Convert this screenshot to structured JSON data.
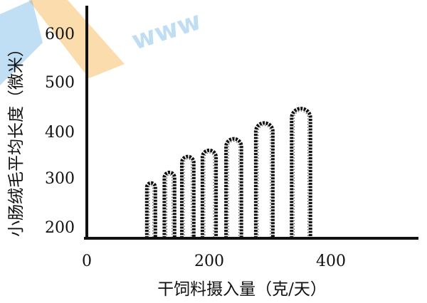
{
  "chart_data": {
    "type": "bar",
    "xlabel": "干饲料摄入量（克/天）",
    "ylabel": "小肠绒毛平均长度（微米）",
    "x_ticks": [
      "0",
      "200",
      "400"
    ],
    "y_ticks": [
      "200",
      "300",
      "400",
      "500",
      "600"
    ],
    "xlim": [
      0,
      560
    ],
    "ylim": [
      175,
      640
    ],
    "series": [
      {
        "x": [
          105,
          135,
          165,
          200,
          240,
          290,
          350
        ],
        "values": [
          290,
          312,
          345,
          358,
          382,
          415,
          445
        ]
      }
    ],
    "grid": false,
    "bar_style": "villus-shaped bars with dark dotted outline",
    "colors": {
      "ink": "#111111",
      "watermark_blue": "#4aa3df",
      "watermark_orange": "#f6b24a"
    }
  }
}
